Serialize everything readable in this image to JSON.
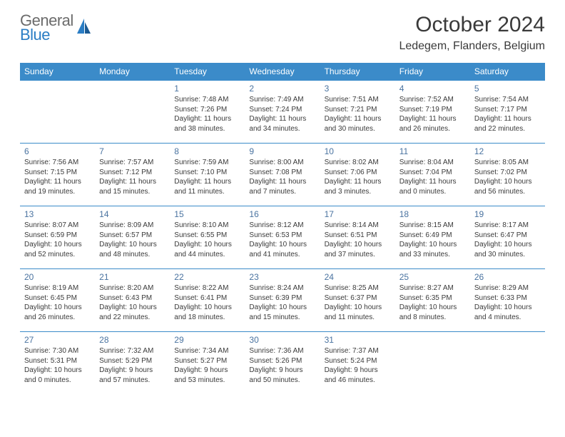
{
  "logo": {
    "word1": "General",
    "word2": "Blue"
  },
  "title": "October 2024",
  "location": "Ledegem, Flanders, Belgium",
  "colors": {
    "header_bg": "#3b8bc9",
    "header_fg": "#ffffff",
    "daynum": "#4a73a0",
    "text": "#3a3a3a",
    "logo_gray": "#6b6b6b",
    "logo_blue": "#2a7dc4",
    "row_border": "#3b8bc9"
  },
  "day_headers": [
    "Sunday",
    "Monday",
    "Tuesday",
    "Wednesday",
    "Thursday",
    "Friday",
    "Saturday"
  ],
  "weeks": [
    [
      null,
      null,
      {
        "n": "1",
        "sr": "Sunrise: 7:48 AM",
        "ss": "Sunset: 7:26 PM",
        "dl": "Daylight: 11 hours and 38 minutes."
      },
      {
        "n": "2",
        "sr": "Sunrise: 7:49 AM",
        "ss": "Sunset: 7:24 PM",
        "dl": "Daylight: 11 hours and 34 minutes."
      },
      {
        "n": "3",
        "sr": "Sunrise: 7:51 AM",
        "ss": "Sunset: 7:21 PM",
        "dl": "Daylight: 11 hours and 30 minutes."
      },
      {
        "n": "4",
        "sr": "Sunrise: 7:52 AM",
        "ss": "Sunset: 7:19 PM",
        "dl": "Daylight: 11 hours and 26 minutes."
      },
      {
        "n": "5",
        "sr": "Sunrise: 7:54 AM",
        "ss": "Sunset: 7:17 PM",
        "dl": "Daylight: 11 hours and 22 minutes."
      }
    ],
    [
      {
        "n": "6",
        "sr": "Sunrise: 7:56 AM",
        "ss": "Sunset: 7:15 PM",
        "dl": "Daylight: 11 hours and 19 minutes."
      },
      {
        "n": "7",
        "sr": "Sunrise: 7:57 AM",
        "ss": "Sunset: 7:12 PM",
        "dl": "Daylight: 11 hours and 15 minutes."
      },
      {
        "n": "8",
        "sr": "Sunrise: 7:59 AM",
        "ss": "Sunset: 7:10 PM",
        "dl": "Daylight: 11 hours and 11 minutes."
      },
      {
        "n": "9",
        "sr": "Sunrise: 8:00 AM",
        "ss": "Sunset: 7:08 PM",
        "dl": "Daylight: 11 hours and 7 minutes."
      },
      {
        "n": "10",
        "sr": "Sunrise: 8:02 AM",
        "ss": "Sunset: 7:06 PM",
        "dl": "Daylight: 11 hours and 3 minutes."
      },
      {
        "n": "11",
        "sr": "Sunrise: 8:04 AM",
        "ss": "Sunset: 7:04 PM",
        "dl": "Daylight: 11 hours and 0 minutes."
      },
      {
        "n": "12",
        "sr": "Sunrise: 8:05 AM",
        "ss": "Sunset: 7:02 PM",
        "dl": "Daylight: 10 hours and 56 minutes."
      }
    ],
    [
      {
        "n": "13",
        "sr": "Sunrise: 8:07 AM",
        "ss": "Sunset: 6:59 PM",
        "dl": "Daylight: 10 hours and 52 minutes."
      },
      {
        "n": "14",
        "sr": "Sunrise: 8:09 AM",
        "ss": "Sunset: 6:57 PM",
        "dl": "Daylight: 10 hours and 48 minutes."
      },
      {
        "n": "15",
        "sr": "Sunrise: 8:10 AM",
        "ss": "Sunset: 6:55 PM",
        "dl": "Daylight: 10 hours and 44 minutes."
      },
      {
        "n": "16",
        "sr": "Sunrise: 8:12 AM",
        "ss": "Sunset: 6:53 PM",
        "dl": "Daylight: 10 hours and 41 minutes."
      },
      {
        "n": "17",
        "sr": "Sunrise: 8:14 AM",
        "ss": "Sunset: 6:51 PM",
        "dl": "Daylight: 10 hours and 37 minutes."
      },
      {
        "n": "18",
        "sr": "Sunrise: 8:15 AM",
        "ss": "Sunset: 6:49 PM",
        "dl": "Daylight: 10 hours and 33 minutes."
      },
      {
        "n": "19",
        "sr": "Sunrise: 8:17 AM",
        "ss": "Sunset: 6:47 PM",
        "dl": "Daylight: 10 hours and 30 minutes."
      }
    ],
    [
      {
        "n": "20",
        "sr": "Sunrise: 8:19 AM",
        "ss": "Sunset: 6:45 PM",
        "dl": "Daylight: 10 hours and 26 minutes."
      },
      {
        "n": "21",
        "sr": "Sunrise: 8:20 AM",
        "ss": "Sunset: 6:43 PM",
        "dl": "Daylight: 10 hours and 22 minutes."
      },
      {
        "n": "22",
        "sr": "Sunrise: 8:22 AM",
        "ss": "Sunset: 6:41 PM",
        "dl": "Daylight: 10 hours and 18 minutes."
      },
      {
        "n": "23",
        "sr": "Sunrise: 8:24 AM",
        "ss": "Sunset: 6:39 PM",
        "dl": "Daylight: 10 hours and 15 minutes."
      },
      {
        "n": "24",
        "sr": "Sunrise: 8:25 AM",
        "ss": "Sunset: 6:37 PM",
        "dl": "Daylight: 10 hours and 11 minutes."
      },
      {
        "n": "25",
        "sr": "Sunrise: 8:27 AM",
        "ss": "Sunset: 6:35 PM",
        "dl": "Daylight: 10 hours and 8 minutes."
      },
      {
        "n": "26",
        "sr": "Sunrise: 8:29 AM",
        "ss": "Sunset: 6:33 PM",
        "dl": "Daylight: 10 hours and 4 minutes."
      }
    ],
    [
      {
        "n": "27",
        "sr": "Sunrise: 7:30 AM",
        "ss": "Sunset: 5:31 PM",
        "dl": "Daylight: 10 hours and 0 minutes."
      },
      {
        "n": "28",
        "sr": "Sunrise: 7:32 AM",
        "ss": "Sunset: 5:29 PM",
        "dl": "Daylight: 9 hours and 57 minutes."
      },
      {
        "n": "29",
        "sr": "Sunrise: 7:34 AM",
        "ss": "Sunset: 5:27 PM",
        "dl": "Daylight: 9 hours and 53 minutes."
      },
      {
        "n": "30",
        "sr": "Sunrise: 7:36 AM",
        "ss": "Sunset: 5:26 PM",
        "dl": "Daylight: 9 hours and 50 minutes."
      },
      {
        "n": "31",
        "sr": "Sunrise: 7:37 AM",
        "ss": "Sunset: 5:24 PM",
        "dl": "Daylight: 9 hours and 46 minutes."
      },
      null,
      null
    ]
  ]
}
